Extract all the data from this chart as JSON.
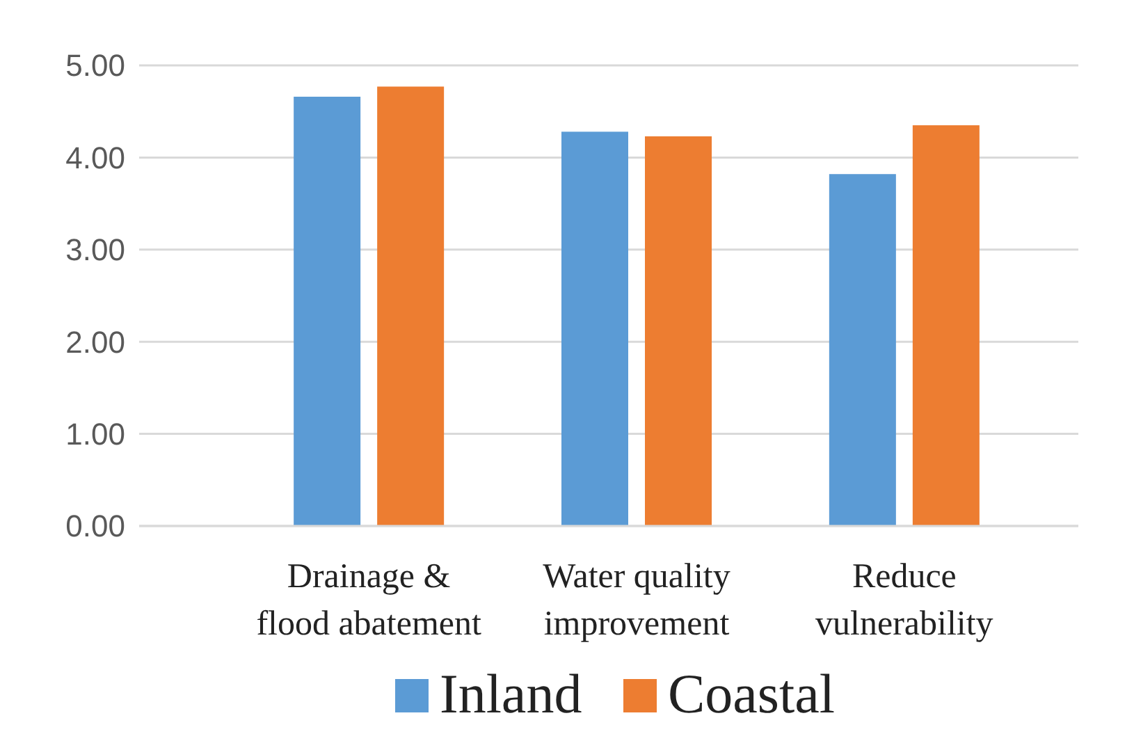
{
  "chart_data": {
    "type": "bar",
    "categories": [
      "Drainage & flood abatement",
      "Water quality improvement",
      "Reduce vulnerability"
    ],
    "series": [
      {
        "name": "Inland",
        "color": "#5b9bd5",
        "values": [
          4.66,
          4.28,
          3.82
        ]
      },
      {
        "name": "Coastal",
        "color": "#ed7d31",
        "values": [
          4.77,
          4.23,
          4.35
        ]
      }
    ],
    "ylim": [
      0,
      5
    ],
    "yticks": [
      {
        "value": 0,
        "label": "0.00"
      },
      {
        "value": 1,
        "label": "1.00"
      },
      {
        "value": 2,
        "label": "2.00"
      },
      {
        "value": 3,
        "label": "3.00"
      },
      {
        "value": 4,
        "label": "4.00"
      },
      {
        "value": 5,
        "label": "5.00"
      }
    ],
    "grid": "y",
    "legend": "bottom"
  }
}
